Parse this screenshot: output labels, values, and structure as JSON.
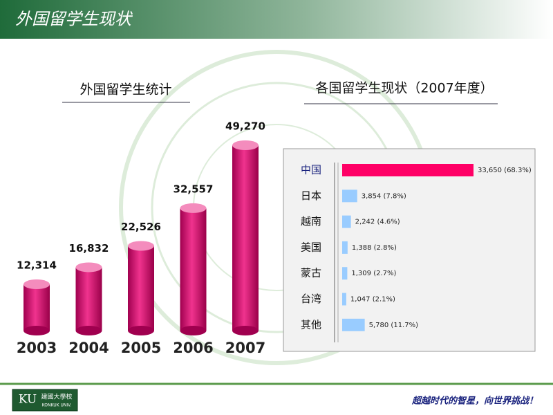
{
  "header": {
    "title": "外国留学生现状"
  },
  "chart_data": [
    {
      "type": "bar",
      "title": "外国留学生统计",
      "categories": [
        "2003",
        "2004",
        "2005",
        "2006",
        "2007"
      ],
      "values": [
        12314,
        16832,
        22526,
        32557,
        49270
      ],
      "value_labels": [
        "12,314",
        "16,832",
        "22,526",
        "32,557",
        "49,270"
      ],
      "color": "#e0197a"
    },
    {
      "type": "barh",
      "title": "各国留学生现状（2007年度）",
      "categories": [
        "中国",
        "日本",
        "越南",
        "美国",
        "蒙古",
        "台湾",
        "其他"
      ],
      "values": [
        33650,
        3854,
        2242,
        1388,
        1309,
        1047,
        5780
      ],
      "value_labels": [
        "33,650 (68.3%)",
        "3,854 (7.8%)",
        "2,242 (4.6%)",
        "1,388 (2.8%)",
        "1,309 (2.7%)",
        "1,047 (2.1%)",
        "5,780 (11.7%)"
      ],
      "colors": [
        "#ff0066",
        "#99ccff",
        "#99ccff",
        "#99ccff",
        "#99ccff",
        "#99ccff",
        "#99ccff"
      ]
    }
  ],
  "logo": {
    "mark": "KU",
    "name": "建國大學校",
    "sub": "KONKUK UNIV."
  },
  "footer": {
    "slogan": "超越时代的智星，向世界挑战！"
  }
}
